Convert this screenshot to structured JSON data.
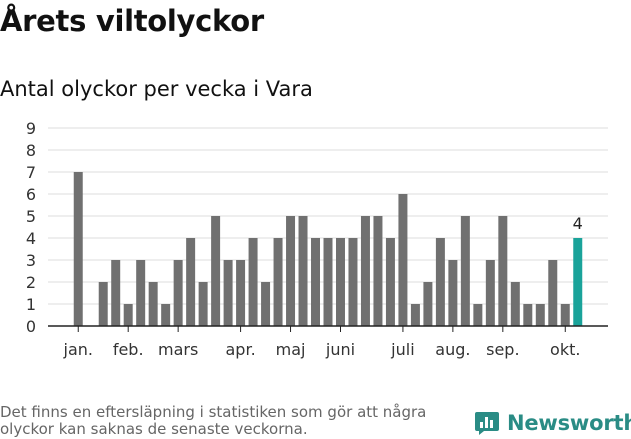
{
  "header": {
    "title": "Årets viltolyckor",
    "subtitle": "Antal olyckor per vecka i Vara"
  },
  "footer": {
    "note": "Det finns en eftersläpning i statistiken som gör att några olyckor kan saknas de senaste veckorna.",
    "brand": "Newsworthy"
  },
  "colors": {
    "bar": "#707070",
    "highlight": "#1aa39a",
    "grid": "#dddddd",
    "axis": "#222222",
    "brand": "#2a8c85"
  },
  "chart_data": {
    "type": "bar",
    "title": "Antal olyckor per vecka i Vara",
    "xlabel": "",
    "ylabel": "",
    "ylim": [
      0,
      9
    ],
    "yticks": [
      0,
      1,
      2,
      3,
      4,
      5,
      6,
      7,
      8,
      9
    ],
    "grid": true,
    "weeks": [
      1,
      2,
      3,
      4,
      5,
      6,
      7,
      8,
      9,
      10,
      11,
      12,
      13,
      14,
      15,
      16,
      17,
      18,
      19,
      20,
      21,
      22,
      23,
      24,
      25,
      26,
      27,
      28,
      29,
      30,
      31,
      32,
      33,
      34,
      35,
      36,
      37,
      38,
      39,
      40,
      41
    ],
    "values": [
      7,
      0,
      2,
      3,
      1,
      3,
      2,
      1,
      3,
      4,
      2,
      5,
      3,
      3,
      4,
      2,
      4,
      5,
      5,
      4,
      4,
      4,
      4,
      5,
      5,
      4,
      6,
      1,
      2,
      4,
      3,
      5,
      1,
      3,
      5,
      2,
      1,
      1,
      3,
      1,
      4
    ],
    "highlight_index": 40,
    "highlight_label": "4",
    "month_labels": [
      {
        "label": "jan.",
        "week": 1
      },
      {
        "label": "feb.",
        "week": 5
      },
      {
        "label": "mars",
        "week": 9
      },
      {
        "label": "apr.",
        "week": 14
      },
      {
        "label": "maj",
        "week": 18
      },
      {
        "label": "juni",
        "week": 22
      },
      {
        "label": "juli",
        "week": 27
      },
      {
        "label": "aug.",
        "week": 31
      },
      {
        "label": "sep.",
        "week": 35
      },
      {
        "label": "okt.",
        "week": 40
      }
    ]
  }
}
